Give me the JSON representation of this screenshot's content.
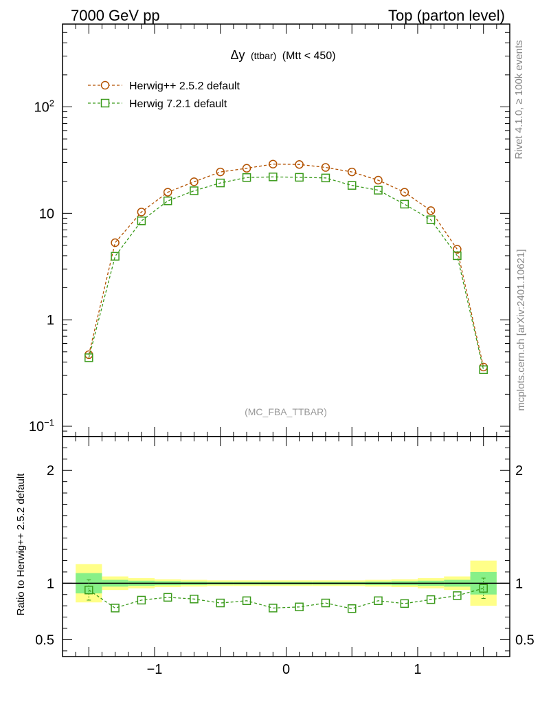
{
  "header": {
    "left": "7000 GeV pp",
    "right": "Top (parton level)"
  },
  "side": {
    "rivet": "Rivet 4.1.0, ≥ 100k events",
    "mcplots": "mcplots.cern.ch [arXiv:2401.10621]"
  },
  "colors": {
    "herwigpp": "#b35200",
    "herwig7": "#3a9a1a",
    "band_green": "#88f088",
    "band_yellow": "#ffff88"
  },
  "chart_data": [
    {
      "id": "main",
      "type": "line",
      "title_symbol": "Δy",
      "title_small": "(ttbar)",
      "title_rest": "(Mtt < 450)",
      "watermark": "(MC_FBA_TTBAR)",
      "yscale": "log",
      "ylim": [
        0.08,
        600
      ],
      "xlim": [
        -1.7,
        1.7
      ],
      "y_tick_labels": [
        {
          "value": 100,
          "base": "10",
          "exp": "2"
        },
        {
          "value": 10,
          "base": "10",
          "exp": ""
        },
        {
          "value": 1,
          "base": "1",
          "exp": ""
        },
        {
          "value": 0.1,
          "base": "10",
          "exp": "−1"
        }
      ],
      "legend_position": "top-left",
      "x": [
        -1.5,
        -1.3,
        -1.1,
        -0.9,
        -0.7,
        -0.5,
        -0.3,
        -0.1,
        0.1,
        0.3,
        0.5,
        0.7,
        0.9,
        1.1,
        1.3,
        1.5
      ],
      "series": [
        {
          "name": "Herwig++ 2.5.2 default",
          "marker": "circle",
          "color": "#b35200",
          "values": [
            0.47,
            5.3,
            10.3,
            15.8,
            19.8,
            24.5,
            26.5,
            29.0,
            28.8,
            27.0,
            24.5,
            20.5,
            15.8,
            10.6,
            4.6,
            0.36
          ]
        },
        {
          "name": "Herwig 7.2.1 default",
          "marker": "square",
          "color": "#3a9a1a",
          "values": [
            0.44,
            3.95,
            8.5,
            13.1,
            16.3,
            19.3,
            21.7,
            22.0,
            21.8,
            21.5,
            18.3,
            16.5,
            12.2,
            8.7,
            4.0,
            0.34
          ]
        }
      ]
    },
    {
      "id": "ratio",
      "type": "line",
      "ylabel": "Ratio to Herwig++ 2.5.2 default",
      "ylim": [
        0.35,
        2.3
      ],
      "xlim": [
        -1.7,
        1.7
      ],
      "y_ticks": [
        0.5,
        1,
        2
      ],
      "y_tick_labels": [
        "0.5",
        "1",
        "2"
      ],
      "x_ticks": [
        -1,
        0,
        1
      ],
      "x_tick_labels": [
        "−1",
        "0",
        "1"
      ],
      "reference_line": 1,
      "bands": {
        "bins": [
          [
            -1.6,
            -1.4
          ],
          [
            -1.4,
            -1.2
          ],
          [
            -1.2,
            -1.0
          ],
          [
            -1.0,
            -0.8
          ],
          [
            -0.8,
            -0.6
          ],
          [
            -0.6,
            -0.4
          ],
          [
            -0.4,
            -0.2
          ],
          [
            -0.2,
            0.0
          ],
          [
            0.0,
            0.2
          ],
          [
            0.2,
            0.4
          ],
          [
            0.4,
            0.6
          ],
          [
            0.6,
            0.8
          ],
          [
            0.8,
            1.0
          ],
          [
            1.0,
            1.2
          ],
          [
            1.2,
            1.4
          ],
          [
            1.4,
            1.6
          ]
        ],
        "yellow_halfwidth": [
          0.17,
          0.06,
          0.045,
          0.035,
          0.03,
          0.025,
          0.025,
          0.025,
          0.025,
          0.025,
          0.025,
          0.03,
          0.035,
          0.045,
          0.06,
          0.2
        ],
        "green_halfwidth": [
          0.09,
          0.03,
          0.022,
          0.018,
          0.015,
          0.012,
          0.012,
          0.012,
          0.012,
          0.012,
          0.012,
          0.015,
          0.018,
          0.022,
          0.03,
          0.1
        ]
      },
      "x": [
        -1.5,
        -1.3,
        -1.1,
        -0.9,
        -0.7,
        -0.5,
        -0.3,
        -0.1,
        0.1,
        0.3,
        0.5,
        0.7,
        0.9,
        1.1,
        1.3,
        1.5
      ],
      "series": [
        {
          "name": "Herwig 7.2.1 default",
          "marker": "square",
          "color": "#3a9a1a",
          "values": [
            0.94,
            0.78,
            0.85,
            0.875,
            0.86,
            0.825,
            0.845,
            0.78,
            0.79,
            0.825,
            0.775,
            0.845,
            0.82,
            0.855,
            0.89,
            0.955
          ],
          "errors": [
            0.09,
            0,
            0,
            0,
            0,
            0,
            0,
            0,
            0,
            0,
            0,
            0,
            0,
            0,
            0,
            0.09
          ]
        }
      ]
    }
  ]
}
